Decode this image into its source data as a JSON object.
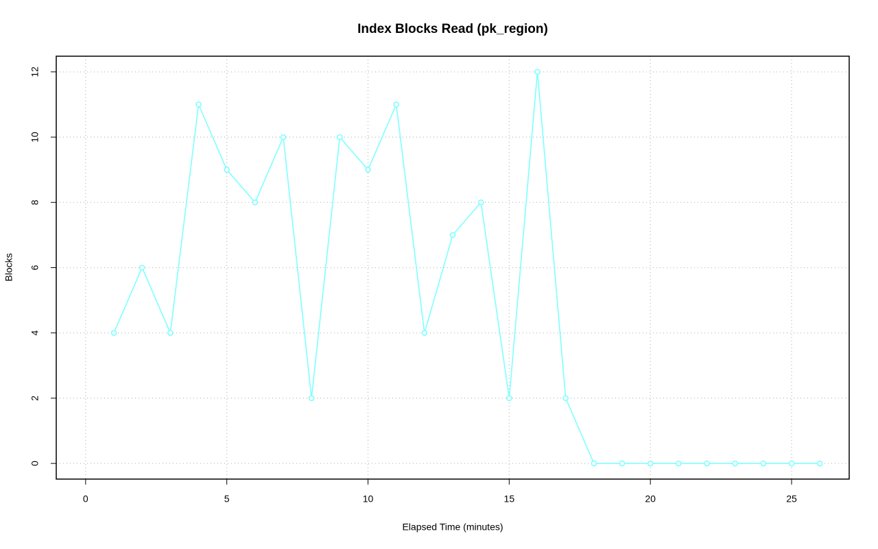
{
  "chart_data": {
    "type": "line",
    "title": "Index Blocks Read (pk_region)",
    "x_label": "Elapsed Time (minutes)",
    "y_label": "Blocks",
    "x": [
      1,
      2,
      3,
      4,
      5,
      6,
      7,
      8,
      9,
      10,
      11,
      12,
      13,
      14,
      15,
      16,
      17,
      18,
      19,
      20,
      21,
      22,
      23,
      24,
      25,
      26
    ],
    "values": [
      4,
      6,
      4,
      11,
      9,
      8,
      10,
      2,
      10,
      9,
      11,
      4,
      7,
      8,
      2,
      12,
      2,
      0,
      0,
      0,
      0,
      0,
      0,
      0,
      0,
      0
    ],
    "color": "#7fffff",
    "xlim": [
      -1.04,
      27.04
    ],
    "xticks": [
      0,
      5,
      10,
      15,
      20,
      25
    ],
    "ylim": [
      -0.48,
      12.48
    ],
    "yticks": [
      0,
      2,
      4,
      6,
      8,
      10,
      12
    ],
    "grid": true
  }
}
